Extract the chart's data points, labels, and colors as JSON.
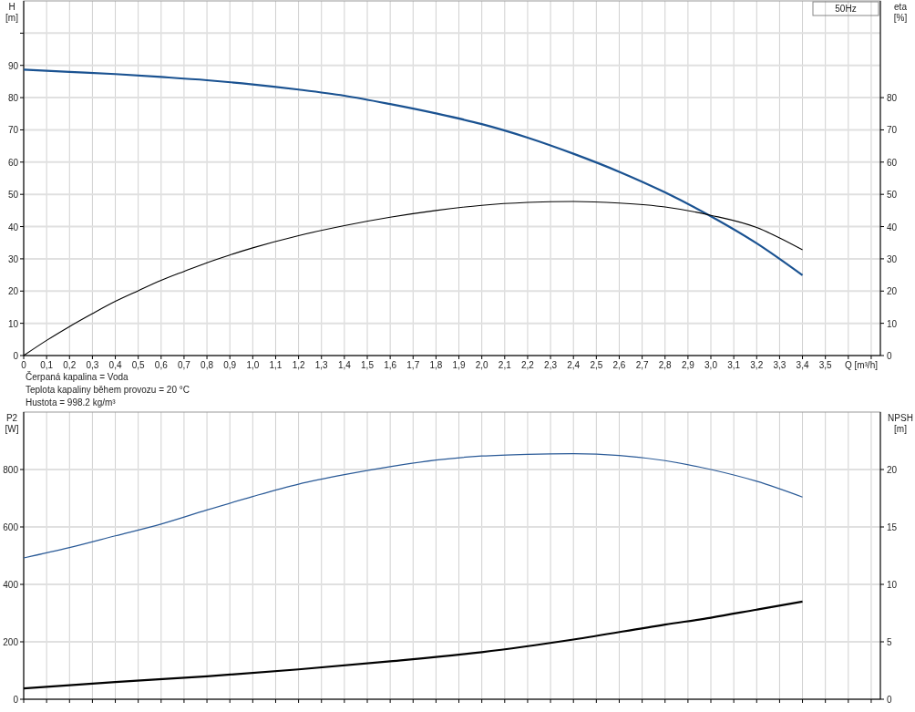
{
  "chart_data": [
    {
      "type": "line",
      "ylabel": "H\n[m]",
      "y2label": "eta\n[%]",
      "xlabel": "Q [m³/h]",
      "xlim": [
        0,
        3.74
      ],
      "xticks": [
        0,
        {
          "value": 0.1,
          "label": "0,1"
        },
        {
          "value": 0.2,
          "label": "0,2"
        },
        {
          "value": 0.3,
          "label": "0,3"
        },
        {
          "value": 0.4,
          "label": "0,4"
        },
        {
          "value": 0.5,
          "label": "0,5"
        },
        {
          "value": 0.6,
          "label": "0,6"
        },
        {
          "value": 0.7,
          "label": "0,7"
        },
        {
          "value": 0.8,
          "label": "0,8"
        },
        {
          "value": 0.9,
          "label": "0,9"
        },
        {
          "value": 1.0,
          "label": "1,0"
        },
        {
          "value": 1.1,
          "label": "1,1"
        },
        {
          "value": 1.2,
          "label": "1,2"
        },
        {
          "value": 1.3,
          "label": "1,3"
        },
        {
          "value": 1.4,
          "label": "1,4"
        },
        {
          "value": 1.5,
          "label": "1,5"
        },
        {
          "value": 1.6,
          "label": "1,6"
        },
        {
          "value": 1.7,
          "label": "1,7"
        },
        {
          "value": 1.8,
          "label": "1,8"
        },
        {
          "value": 1.9,
          "label": "1,9"
        },
        {
          "value": 2.0,
          "label": "2,0"
        },
        {
          "value": 2.1,
          "label": "2,1"
        },
        {
          "value": 2.2,
          "label": "2,2"
        },
        {
          "value": 2.3,
          "label": "2,3"
        },
        {
          "value": 2.4,
          "label": "2,4"
        },
        {
          "value": 2.5,
          "label": "2,5"
        },
        {
          "value": 2.6,
          "label": "2,6"
        },
        {
          "value": 2.7,
          "label": "2,7"
        },
        {
          "value": 2.8,
          "label": "2,8"
        },
        {
          "value": 2.9,
          "label": "2,9"
        },
        {
          "value": 3.0,
          "label": "3,0"
        },
        {
          "value": 3.1,
          "label": "3,1"
        },
        {
          "value": 3.2,
          "label": "3,2"
        },
        {
          "value": 3.3,
          "label": "3,3"
        },
        {
          "value": 3.4,
          "label": "3,4"
        },
        {
          "value": 3.5,
          "label": "3,5"
        },
        {
          "value": 3.6,
          "label": null
        },
        {
          "value": 3.7,
          "label": null
        }
      ],
      "ylim": [
        0,
        110
      ],
      "yticks": [
        0,
        10,
        20,
        30,
        40,
        50,
        60,
        70,
        80,
        90,
        {
          "value": 100,
          "label": null
        }
      ],
      "y2lim": [
        0,
        110
      ],
      "y2ticks": [
        0,
        10,
        20,
        30,
        40,
        50,
        60,
        70,
        80
      ],
      "grid": true,
      "marker": "none",
      "annotations": [
        "50Hz",
        "Čerpaná kapalina = Voda",
        "Teplota kapaliny během provozu = 20 °C",
        "Hustota = 998.2 kg/m³"
      ],
      "series": [
        {
          "color": "#1a5291",
          "x": [
            0,
            0.2,
            0.4,
            0.6,
            0.8,
            1.0,
            1.2,
            1.4,
            1.6,
            1.8,
            2.0,
            2.2,
            2.4,
            2.6,
            2.8,
            3.0,
            3.2,
            3.4
          ],
          "values": [
            88.7,
            88.0,
            87.3,
            86.4,
            85.4,
            84.1,
            82.5,
            80.6,
            78.0,
            75.1,
            71.8,
            67.6,
            62.6,
            57.0,
            50.6,
            43.2,
            34.8,
            24.9
          ]
        },
        {
          "color": "#000000",
          "axis": "y2",
          "x": [
            0,
            0.1,
            0.2,
            0.3,
            0.4,
            0.5,
            0.6,
            0.7,
            0.8,
            0.9,
            1.0,
            1.2,
            1.4,
            1.6,
            1.8,
            2.0,
            2.2,
            2.4,
            2.6,
            2.8,
            3.0,
            3.2,
            3.3,
            3.4
          ],
          "values": [
            0,
            4.7,
            9.0,
            13.0,
            16.8,
            20.1,
            23.3,
            26.1,
            28.8,
            31.2,
            33.4,
            37.2,
            40.3,
            42.9,
            45.0,
            46.6,
            47.5,
            47.8,
            47.3,
            46.1,
            43.5,
            39.7,
            36.5,
            32.8
          ]
        }
      ]
    },
    {
      "type": "line",
      "ylabel": "P2\n[W]",
      "y2label": "NPSH\n[m]",
      "tick_labels": "y",
      "xlim": [
        0,
        3.74
      ],
      "xticks": [
        0,
        0.1,
        0.2,
        0.3,
        0.4,
        0.5,
        0.6,
        0.7,
        0.8,
        0.9,
        1.0,
        1.1,
        1.2,
        1.3,
        1.4,
        1.5,
        1.6,
        1.7,
        1.8,
        1.9,
        2.0,
        2.1,
        2.2,
        2.3,
        2.4,
        2.5,
        2.6,
        2.7,
        2.8,
        2.9,
        3.0,
        3.1,
        3.2,
        3.3,
        3.4,
        3.5,
        3.6,
        3.7
      ],
      "ylim": [
        0,
        1000
      ],
      "yticks": [
        0,
        200,
        400,
        600,
        800
      ],
      "y2lim": [
        0,
        25
      ],
      "y2ticks": [
        0,
        5,
        10,
        15,
        20
      ],
      "grid": true,
      "marker": "none",
      "series": [
        {
          "color": "#2a5a97",
          "x": [
            0,
            0.2,
            0.4,
            0.6,
            0.8,
            1.0,
            1.2,
            1.4,
            1.6,
            1.8,
            2.0,
            2.2,
            2.4,
            2.6,
            2.8,
            3.0,
            3.2,
            3.4
          ],
          "values": [
            492,
            528,
            569,
            610,
            659,
            706,
            749,
            782,
            810,
            833,
            847,
            853,
            855,
            849,
            831,
            800,
            759,
            704
          ]
        },
        {
          "color": "#000000",
          "axis": "y2",
          "x": [
            0,
            0.4,
            0.8,
            1.2,
            1.6,
            2.0,
            2.4,
            2.8,
            3.0,
            3.2,
            3.4
          ],
          "values": [
            0.95,
            1.5,
            2.0,
            2.6,
            3.3,
            4.1,
            5.2,
            6.5,
            7.1,
            7.8,
            8.5
          ]
        }
      ]
    }
  ]
}
